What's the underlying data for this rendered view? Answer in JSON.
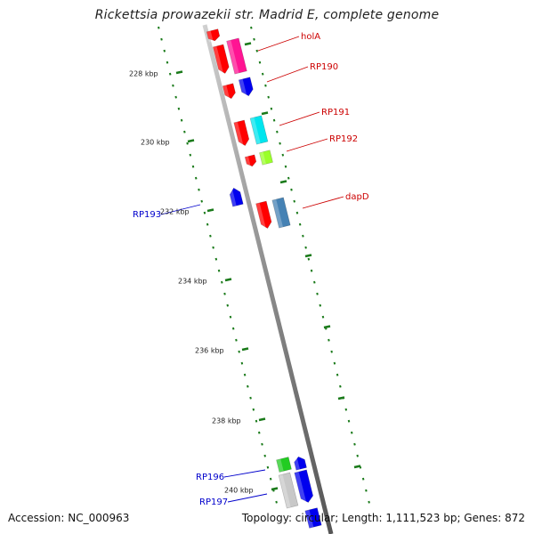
{
  "title": "Rickettsia prowazekii str. Madrid E, complete genome",
  "footer": {
    "accession": "Accession: NC_000963",
    "summary": "Topology: circular; Length: 1,111,523 bp; Genes: 872"
  },
  "colors": {
    "tick": "#1a7a1a",
    "label_forward": "#cc0000",
    "label_reverse": "#0000cc",
    "backbone": "#8c8c8c"
  },
  "scale_labels": [
    "228 kbp",
    "230 kbp",
    "232 kbp",
    "234 kbp",
    "236 kbp",
    "238 kbp",
    "240 kbp"
  ],
  "gene_labels": [
    {
      "text": "holA",
      "strand": "forward"
    },
    {
      "text": "RP190",
      "strand": "forward"
    },
    {
      "text": "RP191",
      "strand": "forward"
    },
    {
      "text": "RP192",
      "strand": "forward"
    },
    {
      "text": "dapD",
      "strand": "forward"
    },
    {
      "text": "RP193",
      "strand": "reverse"
    },
    {
      "text": "RP196",
      "strand": "reverse"
    },
    {
      "text": "RP197",
      "strand": "reverse"
    }
  ],
  "features": [
    {
      "color": "#ff0000"
    },
    {
      "color": "#ff0000"
    },
    {
      "color": "#ff1493"
    },
    {
      "color": "#ff0000"
    },
    {
      "color": "#0000ee"
    },
    {
      "color": "#ff0000"
    },
    {
      "color": "#00e5ee"
    },
    {
      "color": "#ff0000"
    },
    {
      "color": "#9aff2a"
    },
    {
      "color": "#0000ee"
    },
    {
      "color": "#ff0000"
    },
    {
      "color": "#4682b4"
    },
    {
      "color": "#22cc22"
    },
    {
      "color": "#0000ee"
    },
    {
      "color": "#c8c8c8"
    },
    {
      "color": "#0000ee"
    },
    {
      "color": "#0000ee"
    }
  ]
}
